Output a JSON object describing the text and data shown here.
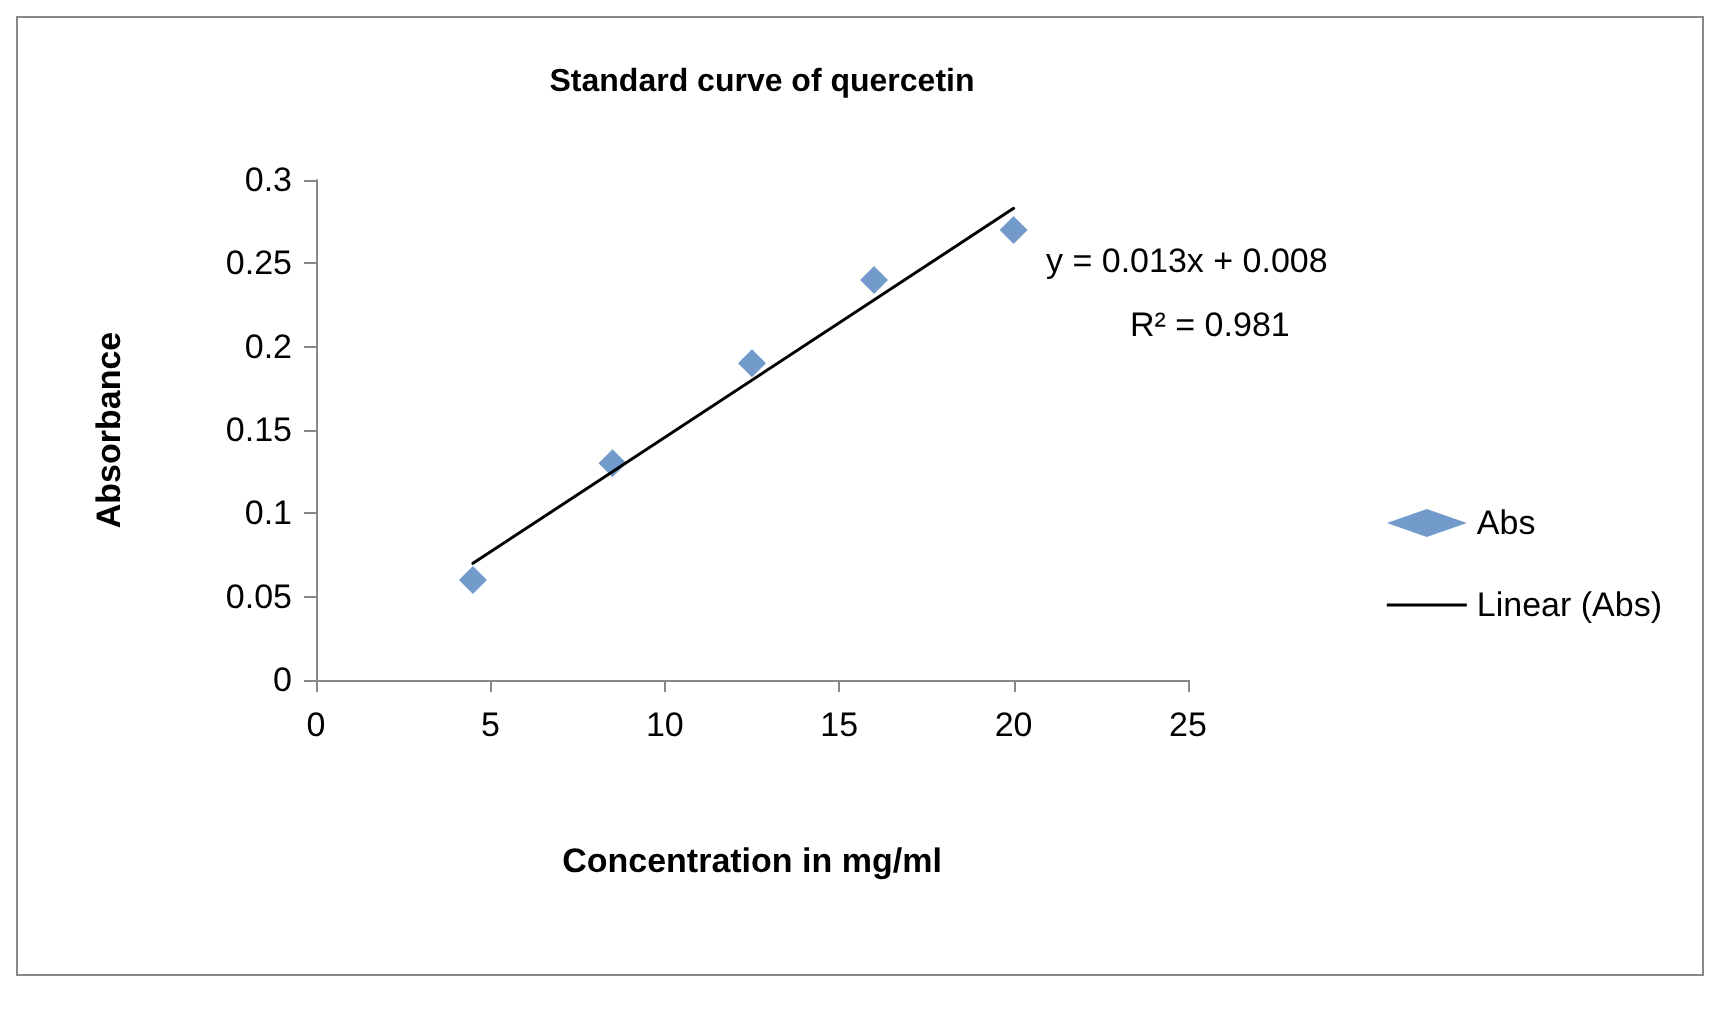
{
  "chart_data": {
    "type": "scatter",
    "title": "Standard curve of quercetin",
    "xlabel": "Concentration in mg/ml",
    "ylabel": "Absorbance",
    "x": [
      4.5,
      8.5,
      12.5,
      16,
      20
    ],
    "series": [
      {
        "name": "Abs",
        "color": "#4f81bd",
        "values": [
          0.06,
          0.13,
          0.19,
          0.24,
          0.27
        ],
        "marker": "diamond"
      },
      {
        "name": "Linear (Abs)",
        "type": "line",
        "color": "#000000",
        "x": [
          4.5,
          20
        ],
        "values": [
          0.07,
          0.283
        ],
        "marker": "none",
        "line_style": "solid"
      }
    ],
    "xlim": [
      0,
      25
    ],
    "xticks": [
      0,
      5,
      10,
      15,
      20,
      25
    ],
    "ylim": [
      0,
      0.3
    ],
    "yticks": [
      0,
      0.05,
      0.1,
      0.15,
      0.2,
      0.25,
      0.3
    ],
    "annotations": [
      "y = 0.013x + 0.008",
      "R² = 0.981"
    ],
    "grid": false,
    "legend": "right"
  }
}
